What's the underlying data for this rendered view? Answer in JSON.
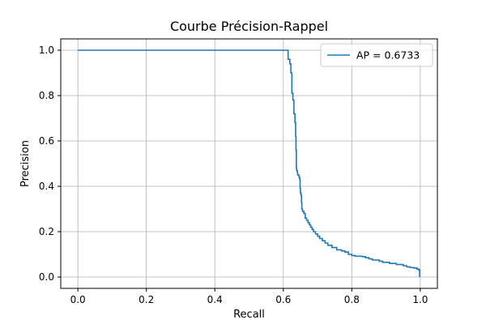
{
  "chart_data": {
    "type": "line",
    "title": "Courbe Précision-Rappel",
    "xlabel": "Recall",
    "ylabel": "Precision",
    "xlim": [
      -0.05,
      1.05
    ],
    "ylim": [
      -0.05,
      1.05
    ],
    "xticks": [
      0.0,
      0.2,
      0.4,
      0.6,
      0.8,
      1.0
    ],
    "xtick_labels": [
      "0.0",
      "0.2",
      "0.4",
      "0.6",
      "0.8",
      "1.0"
    ],
    "yticks": [
      0.0,
      0.2,
      0.4,
      0.6,
      0.8,
      1.0
    ],
    "ytick_labels": [
      "0.0",
      "0.2",
      "0.4",
      "0.6",
      "0.8",
      "1.0"
    ],
    "grid": true,
    "legend_position": "top-right",
    "drawstyle": "steps-post",
    "series": [
      {
        "name": "AP = 0.6733",
        "color": "#1f77b4",
        "points": [
          [
            0.0,
            1.0
          ],
          [
            0.612,
            1.0
          ],
          [
            0.614,
            0.96
          ],
          [
            0.618,
            0.96
          ],
          [
            0.619,
            0.94
          ],
          [
            0.621,
            0.94
          ],
          [
            0.622,
            0.9
          ],
          [
            0.624,
            0.9
          ],
          [
            0.625,
            0.81
          ],
          [
            0.627,
            0.81
          ],
          [
            0.628,
            0.78
          ],
          [
            0.63,
            0.78
          ],
          [
            0.631,
            0.72
          ],
          [
            0.633,
            0.72
          ],
          [
            0.634,
            0.68
          ],
          [
            0.635,
            0.68
          ],
          [
            0.636,
            0.62
          ],
          [
            0.637,
            0.56
          ],
          [
            0.638,
            0.48
          ],
          [
            0.639,
            0.47
          ],
          [
            0.641,
            0.46
          ],
          [
            0.642,
            0.45
          ],
          [
            0.644,
            0.45
          ],
          [
            0.646,
            0.44
          ],
          [
            0.648,
            0.43
          ],
          [
            0.649,
            0.39
          ],
          [
            0.65,
            0.37
          ],
          [
            0.652,
            0.36
          ],
          [
            0.653,
            0.33
          ],
          [
            0.654,
            0.3
          ],
          [
            0.656,
            0.29
          ],
          [
            0.66,
            0.28
          ],
          [
            0.664,
            0.26
          ],
          [
            0.668,
            0.25
          ],
          [
            0.672,
            0.24
          ],
          [
            0.676,
            0.23
          ],
          [
            0.68,
            0.22
          ],
          [
            0.684,
            0.21
          ],
          [
            0.688,
            0.2
          ],
          [
            0.694,
            0.19
          ],
          [
            0.7,
            0.18
          ],
          [
            0.706,
            0.17
          ],
          [
            0.714,
            0.16
          ],
          [
            0.722,
            0.15
          ],
          [
            0.73,
            0.14
          ],
          [
            0.742,
            0.13
          ],
          [
            0.756,
            0.12
          ],
          [
            0.77,
            0.115
          ],
          [
            0.78,
            0.11
          ],
          [
            0.79,
            0.1
          ],
          [
            0.8,
            0.095
          ],
          [
            0.81,
            0.092
          ],
          [
            0.83,
            0.09
          ],
          [
            0.84,
            0.085
          ],
          [
            0.85,
            0.08
          ],
          [
            0.86,
            0.075
          ],
          [
            0.88,
            0.07
          ],
          [
            0.89,
            0.065
          ],
          [
            0.91,
            0.06
          ],
          [
            0.93,
            0.055
          ],
          [
            0.95,
            0.05
          ],
          [
            0.96,
            0.045
          ],
          [
            0.97,
            0.042
          ],
          [
            0.98,
            0.04
          ],
          [
            0.99,
            0.035
          ],
          [
            0.995,
            0.032
          ],
          [
            0.998,
            0.0
          ]
        ]
      }
    ]
  }
}
